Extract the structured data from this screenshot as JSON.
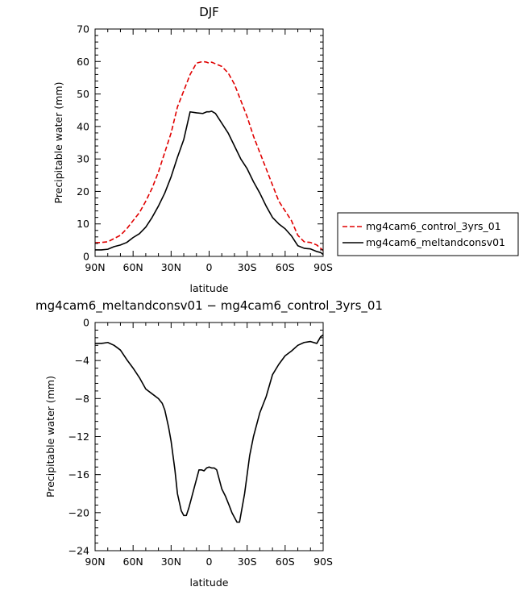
{
  "chart_data": [
    {
      "type": "line",
      "title": "DJF",
      "xlabel": "latitude",
      "ylabel": "Precipitable water (mm)",
      "xlim": [
        90,
        -90
      ],
      "ylim": [
        0,
        70
      ],
      "x_ticks": [
        90,
        60,
        30,
        0,
        -30,
        -60,
        -90
      ],
      "x_tick_labels": [
        "90N",
        "60N",
        "30N",
        "0",
        "30S",
        "60S",
        "90S"
      ],
      "y_ticks": [
        0,
        10,
        20,
        30,
        40,
        50,
        60,
        70
      ],
      "y_tick_labels": [
        "0",
        "10",
        "20",
        "30",
        "40",
        "50",
        "60",
        "70"
      ],
      "legend": "right",
      "series": [
        {
          "name": "mg4cam6_control_3yrs_01",
          "color": "#e00000",
          "dash": "dashed",
          "x": [
            90,
            85,
            80,
            75,
            70,
            65,
            60,
            55,
            50,
            45,
            40,
            35,
            30,
            25,
            20,
            15,
            10,
            5,
            2,
            0,
            -2,
            -5,
            -10,
            -15,
            -20,
            -25,
            -30,
            -35,
            -40,
            -45,
            -50,
            -55,
            -60,
            -65,
            -70,
            -75,
            -80,
            -85,
            -88,
            -90
          ],
          "y": [
            4.2,
            4.3,
            4.5,
            5.5,
            6.5,
            8.5,
            11,
            13.5,
            17,
            21,
            26,
            32,
            38,
            46,
            51,
            56,
            59.5,
            60,
            59.8,
            59.5,
            59.8,
            59.3,
            58.5,
            56.5,
            53,
            48,
            43,
            37,
            32,
            27,
            22,
            17,
            14,
            11,
            6.5,
            4.5,
            4.3,
            3.5,
            2.5,
            1.8
          ]
        },
        {
          "name": "mg4cam6_meltandconsv01",
          "color": "#000000",
          "dash": "solid",
          "x": [
            90,
            85,
            80,
            75,
            70,
            65,
            60,
            55,
            50,
            45,
            40,
            35,
            30,
            25,
            20,
            15,
            10,
            5,
            2,
            0,
            -2,
            -5,
            -10,
            -15,
            -20,
            -25,
            -30,
            -35,
            -40,
            -45,
            -50,
            -55,
            -60,
            -65,
            -70,
            -75,
            -80,
            -85,
            -88,
            -90
          ],
          "y": [
            2,
            2,
            2.2,
            3,
            3.5,
            4.3,
            5.8,
            7,
            9,
            12,
            15.5,
            19.5,
            24.5,
            30.5,
            36,
            44.5,
            44.2,
            44,
            44.5,
            44.5,
            44.7,
            44,
            41,
            38,
            34,
            30,
            27,
            23,
            19.5,
            15.5,
            12,
            10,
            8.5,
            6.3,
            3.3,
            2.5,
            2.3,
            1.5,
            1.2,
            0.6
          ]
        }
      ]
    },
    {
      "type": "line",
      "title": "mg4cam6_meltandconsv01 − mg4cam6_control_3yrs_01",
      "xlabel": "latitude",
      "ylabel": "Precipitable water (mm)",
      "xlim": [
        90,
        -90
      ],
      "ylim": [
        -24,
        0
      ],
      "x_ticks": [
        90,
        60,
        30,
        0,
        -30,
        -60,
        -90
      ],
      "x_tick_labels": [
        "90N",
        "60N",
        "30N",
        "0",
        "30S",
        "60S",
        "90S"
      ],
      "y_ticks": [
        0,
        -4,
        -8,
        -12,
        -16,
        -20,
        -24
      ],
      "y_tick_labels": [
        "0",
        "−4",
        "−8",
        "−12",
        "−16",
        "−20",
        "−24"
      ],
      "series": [
        {
          "color": "#000000",
          "dash": "solid",
          "x": [
            90,
            85,
            80,
            75,
            70,
            65,
            60,
            55,
            50,
            45,
            40,
            37,
            35,
            32,
            30,
            27,
            25,
            22,
            20,
            18,
            16,
            14,
            12,
            10,
            8,
            6,
            4,
            2,
            0,
            -2,
            -4,
            -6,
            -8,
            -10,
            -13,
            -16,
            -18,
            -20,
            -22,
            -24,
            -26,
            -28,
            -30,
            -32,
            -35,
            -38,
            -40,
            -45,
            -50,
            -55,
            -60,
            -65,
            -70,
            -75,
            -80,
            -85,
            -88,
            -90
          ],
          "y": [
            -2.2,
            -2.2,
            -2.1,
            -2.4,
            -2.9,
            -3.9,
            -4.8,
            -5.8,
            -7,
            -7.5,
            -8,
            -8.5,
            -9.2,
            -11,
            -12.5,
            -15.5,
            -18,
            -19.8,
            -20.3,
            -20.3,
            -19.5,
            -18.5,
            -17.5,
            -16.5,
            -15.5,
            -15.5,
            -15.6,
            -15.3,
            -15.2,
            -15.3,
            -15.3,
            -15.5,
            -16.5,
            -17.5,
            -18.3,
            -19.3,
            -20,
            -20.5,
            -21,
            -21,
            -19.5,
            -18,
            -16,
            -14,
            -12,
            -10.5,
            -9.5,
            -7.8,
            -5.5,
            -4.4,
            -3.5,
            -3,
            -2.4,
            -2.1,
            -2,
            -2.2,
            -1.5,
            -1.3
          ]
        }
      ]
    }
  ],
  "legend": {
    "items": [
      {
        "label": "mg4cam6_control_3yrs_01",
        "color": "#e00000",
        "dash": "dashed"
      },
      {
        "label": "mg4cam6_meltandconsv01",
        "color": "#000000",
        "dash": "solid"
      }
    ]
  }
}
